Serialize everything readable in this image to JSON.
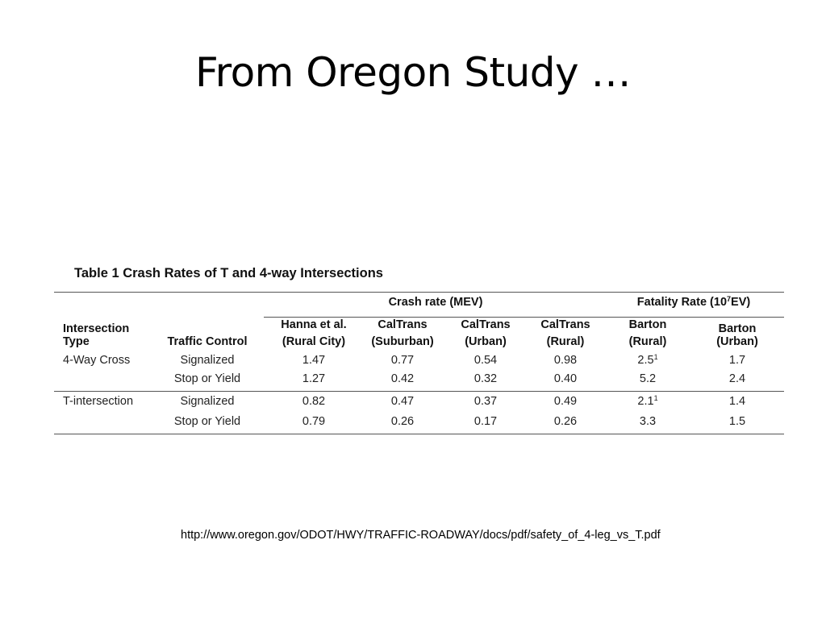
{
  "slide": {
    "title": "From Oregon Study …",
    "source_url": "http://www.oregon.gov/ODOT/HWY/TRAFFIC-ROADWAY/docs/pdf/safety_of_4-leg_vs_T.pdf"
  },
  "table": {
    "caption": "Table 1 Crash Rates of T and 4-way Intersections",
    "group_headers": {
      "crash": "Crash rate (MEV)",
      "fatality_prefix": "Fatality Rate (10",
      "fatality_exp": "7",
      "fatality_suffix": "EV)"
    },
    "col_headers": {
      "type_line1": "Intersection",
      "type_line2": "Type",
      "control": "Traffic Control",
      "hanna_1": "Hanna et al.",
      "hanna_2": "(Rural City)",
      "caltrans_sub_1": "CalTrans",
      "caltrans_sub_2": "(Suburban)",
      "caltrans_urb_1": "CalTrans",
      "caltrans_urb_2": "(Urban)",
      "caltrans_rur_1": "CalTrans",
      "caltrans_rur_2": "(Rural)",
      "barton_rur_1": "Barton",
      "barton_rur_2": "(Rural)",
      "barton_urb_1": "Barton",
      "barton_urb_2": "(Urban)"
    },
    "rows": [
      {
        "type": "4-Way Cross",
        "control": "Signalized",
        "hanna": "1.47",
        "ct_sub": "0.77",
        "ct_urb": "0.54",
        "ct_rur": "0.98",
        "barton_rur": "2.5",
        "barton_rur_note": "1",
        "barton_urb": "1.7"
      },
      {
        "type": "",
        "control": "Stop or Yield",
        "hanna": "1.27",
        "ct_sub": "0.42",
        "ct_urb": "0.32",
        "ct_rur": "0.40",
        "barton_rur": "5.2",
        "barton_rur_note": "",
        "barton_urb": "2.4"
      },
      {
        "type": "T-intersection",
        "control": "Signalized",
        "hanna": "0.82",
        "ct_sub": "0.47",
        "ct_urb": "0.37",
        "ct_rur": "0.49",
        "barton_rur": "2.1",
        "barton_rur_note": "1",
        "barton_urb": "1.4"
      },
      {
        "type": "",
        "control": "Stop or Yield",
        "hanna": "0.79",
        "ct_sub": "0.26",
        "ct_urb": "0.17",
        "ct_rur": "0.26",
        "barton_rur": "3.3",
        "barton_rur_note": "",
        "barton_urb": "1.5"
      }
    ]
  }
}
